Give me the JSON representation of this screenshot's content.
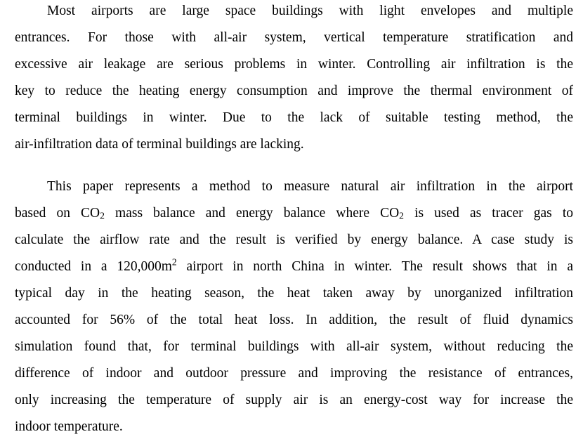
{
  "document": {
    "paragraphs": [
      {
        "lines": [
          "Most airports are large space buildings with light envelopes and multiple",
          "entrances. For those with all-air system, vertical temperature stratification and",
          "excessive air leakage are serious problems in winter. Controlling air infiltration is the",
          "key to reduce the heating energy consumption and improve the thermal environment of",
          "terminal buildings in winter. Due to the lack of suitable testing method, the",
          "air-infiltration data of terminal buildings are lacking."
        ]
      },
      {
        "lines": [
          "This paper represents a method to measure natural air infiltration in the airport",
          "based on CO",
          "2",
          " mass balance and energy balance where CO",
          "2",
          " is used as tracer gas to",
          "calculate the airflow rate and the result is verified by energy balance. A case study is",
          "conducted in a 120,000m",
          "2",
          " airport in north China in winter. The result shows that in a",
          "typical day in the heating season, the heat taken away by unorganized infiltration",
          "accounted for 56% of the total heat loss. In addition, the result of fluid dynamics",
          "simulation found that, for terminal buildings with all-air system, without reducing the",
          "difference of indoor and outdoor pressure and improving the resistance of entrances,",
          "only increasing the temperature of supply air is an energy-cost way for increase the",
          "indoor temperature."
        ]
      }
    ]
  }
}
